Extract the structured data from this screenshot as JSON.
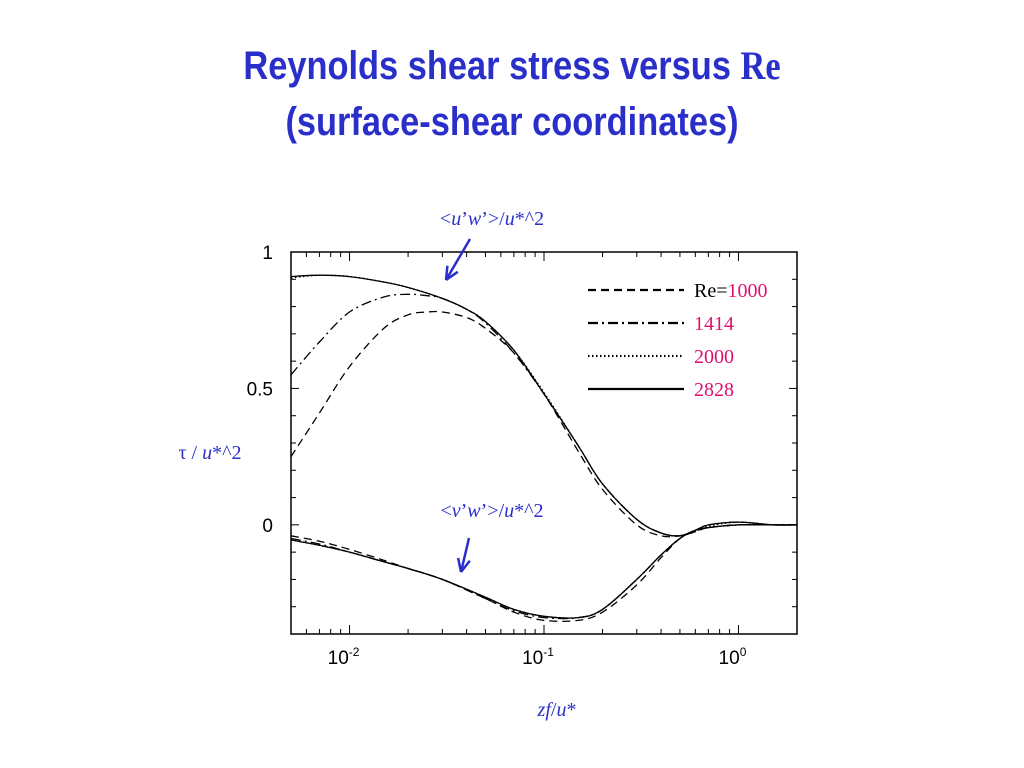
{
  "title": {
    "line1_text": "Reynolds shear stress versus ",
    "line1_re": "Re",
    "line2": "(surface-shear coordinates)"
  },
  "colors": {
    "title": "#2b2fc9",
    "annotation": "#2b2fc9",
    "legend_value": "#e0116e",
    "line": "#000000"
  },
  "chart_data": {
    "type": "line",
    "xlabel": "zf/u*",
    "ylabel": "τ / u*^2",
    "x_scale": "log",
    "xlim": [
      0.005,
      2.0
    ],
    "ylim": [
      -0.4,
      1.0
    ],
    "x_ticks": [
      {
        "base": "10",
        "exp": "-2",
        "value": 0.01
      },
      {
        "base": "10",
        "exp": "-1",
        "value": 0.1
      },
      {
        "base": "10",
        "exp": "0",
        "value": 1
      }
    ],
    "y_ticks": [
      {
        "label": "1",
        "value": 1
      },
      {
        "label": "0.5",
        "value": 0.5
      },
      {
        "label": "0",
        "value": 0
      }
    ],
    "legend": {
      "placement": "top-right",
      "prefix": "Re=",
      "entries": [
        {
          "value": "1000",
          "style": "dashed"
        },
        {
          "value": "1414",
          "style": "dash-dot"
        },
        {
          "value": "2000",
          "style": "dotted"
        },
        {
          "value": "2828",
          "style": "solid"
        }
      ]
    },
    "annotations": [
      {
        "text": "<u’w’>/u*^2",
        "target": "uw-curves"
      },
      {
        "text": "<v’w’>/u*^2",
        "target": "vw-curves"
      }
    ],
    "series": [
      {
        "name": "<u’w’>/u*^2, Re=1000",
        "style": "dashed",
        "x": [
          0.005,
          0.007,
          0.01,
          0.015,
          0.02,
          0.025,
          0.03,
          0.04,
          0.05,
          0.07,
          0.1,
          0.15,
          0.2,
          0.3,
          0.4,
          0.5,
          0.6,
          0.7,
          1.0,
          1.5,
          2.0
        ],
        "y": [
          0.25,
          0.41,
          0.58,
          0.72,
          0.77,
          0.78,
          0.78,
          0.76,
          0.72,
          0.63,
          0.48,
          0.27,
          0.13,
          0.0,
          -0.04,
          -0.04,
          -0.025,
          -0.01,
          0.0,
          0.0,
          0.0
        ]
      },
      {
        "name": "<u’w’>/u*^2, Re=1414",
        "style": "dash-dot",
        "x": [
          0.005,
          0.007,
          0.01,
          0.015,
          0.02,
          0.025,
          0.03,
          0.04,
          0.05,
          0.07,
          0.1,
          0.15,
          0.2,
          0.3,
          0.4,
          0.5,
          0.6,
          0.7,
          1.0,
          1.5,
          2.0
        ],
        "y": [
          0.55,
          0.67,
          0.78,
          0.835,
          0.845,
          0.84,
          0.83,
          0.79,
          0.74,
          0.63,
          0.48,
          0.29,
          0.15,
          0.02,
          -0.03,
          -0.04,
          -0.02,
          0.0,
          0.01,
          0.0,
          0.0
        ]
      },
      {
        "name": "<u’w’>/u*^2, Re=2000",
        "style": "dotted",
        "x": [
          0.005,
          0.007,
          0.01,
          0.015,
          0.02,
          0.03,
          0.04,
          0.05,
          0.07,
          0.1,
          0.15,
          0.2,
          0.3,
          0.4,
          0.5,
          0.6,
          0.7,
          1.0,
          1.5,
          2.0
        ],
        "y": [
          0.905,
          0.915,
          0.91,
          0.89,
          0.87,
          0.83,
          0.79,
          0.745,
          0.64,
          0.485,
          0.29,
          0.15,
          0.02,
          -0.03,
          -0.04,
          -0.025,
          -0.005,
          0.01,
          0.0,
          0.0
        ]
      },
      {
        "name": "<u’w’>/u*^2, Re=2828",
        "style": "solid",
        "x": [
          0.005,
          0.007,
          0.01,
          0.015,
          0.02,
          0.03,
          0.04,
          0.05,
          0.07,
          0.1,
          0.15,
          0.2,
          0.3,
          0.4,
          0.5,
          0.6,
          0.7,
          1.0,
          1.5,
          2.0
        ],
        "y": [
          0.91,
          0.915,
          0.91,
          0.89,
          0.87,
          0.83,
          0.79,
          0.745,
          0.64,
          0.48,
          0.29,
          0.15,
          0.02,
          -0.03,
          -0.04,
          -0.02,
          0.0,
          0.01,
          0.0,
          0.0
        ]
      },
      {
        "name": "<v’w’>/u*^2, Re=1000",
        "style": "dashed",
        "x": [
          0.005,
          0.007,
          0.01,
          0.015,
          0.02,
          0.03,
          0.05,
          0.07,
          0.1,
          0.15,
          0.2,
          0.3,
          0.4,
          0.5,
          0.6,
          0.7,
          1.0,
          1.5,
          2.0
        ],
        "y": [
          -0.04,
          -0.06,
          -0.09,
          -0.13,
          -0.16,
          -0.2,
          -0.27,
          -0.32,
          -0.35,
          -0.35,
          -0.32,
          -0.22,
          -0.12,
          -0.05,
          -0.02,
          -0.01,
          0.0,
          0.0,
          0.0
        ]
      },
      {
        "name": "<v’w’>/u*^2, Re=1414",
        "style": "dash-dot",
        "x": [
          0.005,
          0.007,
          0.01,
          0.015,
          0.02,
          0.03,
          0.05,
          0.07,
          0.1,
          0.15,
          0.2,
          0.3,
          0.4,
          0.5,
          0.6,
          0.7,
          1.0,
          1.5,
          2.0
        ],
        "y": [
          -0.05,
          -0.07,
          -0.1,
          -0.135,
          -0.16,
          -0.2,
          -0.27,
          -0.315,
          -0.34,
          -0.34,
          -0.31,
          -0.2,
          -0.11,
          -0.05,
          -0.02,
          -0.01,
          0.0,
          0.0,
          0.0
        ]
      },
      {
        "name": "<v’w’>/u*^2, Re=2000",
        "style": "dotted",
        "x": [
          0.005,
          0.007,
          0.01,
          0.015,
          0.02,
          0.03,
          0.05,
          0.07,
          0.1,
          0.15,
          0.2,
          0.3,
          0.4,
          0.5,
          0.6,
          0.7,
          1.0,
          1.5,
          2.0
        ],
        "y": [
          -0.055,
          -0.075,
          -0.1,
          -0.135,
          -0.16,
          -0.2,
          -0.265,
          -0.31,
          -0.335,
          -0.34,
          -0.31,
          -0.2,
          -0.11,
          -0.05,
          -0.02,
          -0.01,
          0.0,
          0.0,
          0.0
        ]
      },
      {
        "name": "<v’w’>/u*^2, Re=2828",
        "style": "solid",
        "x": [
          0.005,
          0.007,
          0.01,
          0.015,
          0.02,
          0.03,
          0.05,
          0.07,
          0.1,
          0.15,
          0.2,
          0.3,
          0.4,
          0.5,
          0.6,
          0.7,
          1.0,
          1.5,
          2.0
        ],
        "y": [
          -0.055,
          -0.075,
          -0.1,
          -0.135,
          -0.16,
          -0.2,
          -0.265,
          -0.31,
          -0.335,
          -0.34,
          -0.31,
          -0.2,
          -0.11,
          -0.05,
          -0.02,
          -0.01,
          0.0,
          0.0,
          0.0
        ]
      }
    ]
  }
}
